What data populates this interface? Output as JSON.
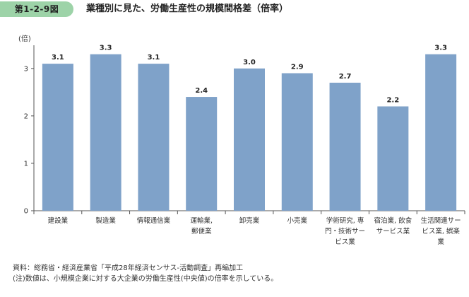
{
  "header": {
    "figure_number": "第1-2-9図",
    "title": "業種別に見た、労働生産性の規模間格差（倍率）"
  },
  "chart_data": {
    "type": "bar",
    "ylabel": "(倍)",
    "xlabel": "",
    "ylim": [
      0,
      3.4
    ],
    "yticks": [
      0,
      1,
      2,
      3
    ],
    "grid": false,
    "categories": [
      [
        "建設業"
      ],
      [
        "製造業"
      ],
      [
        "情報通信業"
      ],
      [
        "運輸業,",
        "郵便業"
      ],
      [
        "卸売業"
      ],
      [
        "小売業"
      ],
      [
        "学術研究, 専",
        "門・技術サー",
        "ビス業"
      ],
      [
        "宿泊業, 飲食",
        "サービス業"
      ],
      [
        "生活関連サー",
        "ビス業, 娯楽",
        "業"
      ]
    ],
    "values": [
      3.1,
      3.3,
      3.1,
      2.4,
      3.0,
      2.9,
      2.7,
      2.2,
      3.3
    ],
    "value_labels": [
      "3.1",
      "3.3",
      "3.1",
      "2.4",
      "3.0",
      "2.9",
      "2.7",
      "2.2",
      "3.3"
    ],
    "bar_color": "#7fa2c9"
  },
  "footer": {
    "source": "資料：総務省・経済産業省「平成28年経済センサス‐活動調査」再編加工",
    "note": "(注)数値は、小規模企業に対する大企業の労働生産性(中央値)の倍率を示している。"
  }
}
